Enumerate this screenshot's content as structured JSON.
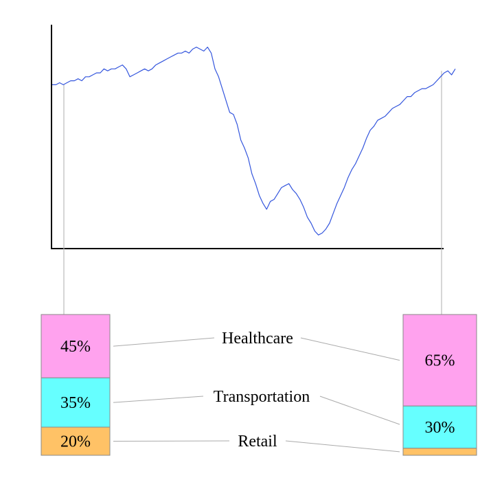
{
  "chart_data": [
    {
      "type": "line",
      "title": "",
      "xlabel": "",
      "ylabel": "",
      "grid": false,
      "series": [
        {
          "color": "#3355dd",
          "values": [
            78,
            78,
            79,
            78,
            79,
            80,
            80,
            81,
            80,
            82,
            82,
            83,
            84,
            84,
            86,
            85,
            86,
            86,
            87,
            88,
            86,
            82,
            83,
            84,
            85,
            86,
            85,
            86,
            88,
            89,
            90,
            91,
            92,
            93,
            94,
            94,
            95,
            94,
            96,
            97,
            96,
            95,
            97,
            94,
            86,
            82,
            76,
            70,
            64,
            63,
            58,
            50,
            46,
            41,
            33,
            28,
            22,
            18,
            15,
            19,
            20,
            23,
            26,
            27,
            28,
            25,
            23,
            20,
            16,
            11,
            8,
            4,
            2,
            3,
            5,
            8,
            13,
            18,
            22,
            26,
            31,
            35,
            38,
            42,
            46,
            51,
            55,
            57,
            60,
            61,
            62,
            64,
            66,
            67,
            68,
            70,
            72,
            72,
            74,
            75,
            76,
            76,
            77,
            78,
            80,
            82,
            84,
            85,
            83,
            86
          ]
        }
      ],
      "ylim": [
        0,
        100
      ],
      "start_marker_index": 3,
      "end_marker_index": 107
    },
    {
      "type": "bar",
      "stacked": true,
      "series": [
        {
          "name": "Healthcare",
          "values": [
            45,
            65
          ],
          "color": "#ffa2ee"
        },
        {
          "name": "Transportation",
          "values": [
            35,
            30
          ],
          "color": "#66ffff"
        },
        {
          "name": "Retail",
          "values": [
            20,
            5
          ],
          "color": "#ffc266"
        }
      ],
      "data_labels": [
        [
          "45%",
          "65%"
        ],
        [
          "35%",
          "30%"
        ],
        [
          "20%",
          ""
        ]
      ]
    }
  ]
}
